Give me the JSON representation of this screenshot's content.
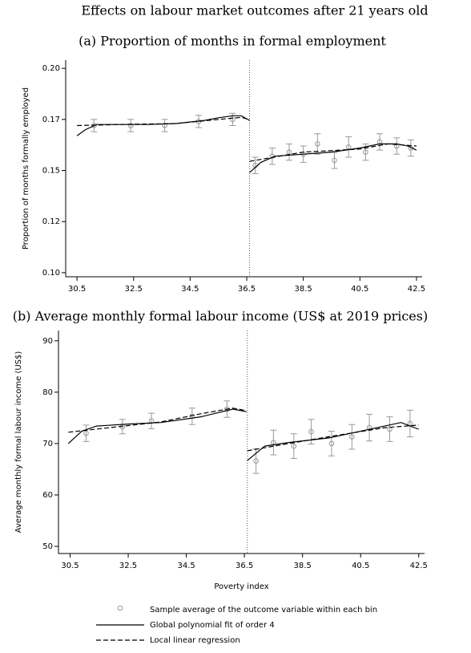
{
  "title": "Effects on labour market outcomes after 21 years old",
  "legend": [
    {
      "label": "Sample average of the outcome variable within each bin",
      "style": "points"
    },
    {
      "label": "Global polynomial fit of order 4",
      "style": "solid"
    },
    {
      "label": "Local linear regression",
      "style": "dashed"
    }
  ],
  "chart_data": [
    {
      "type": "rd",
      "title": "(a) Proportion of months in formal employment",
      "ylabel": "Proportion of months formally employed",
      "xlim": [
        30.1,
        42.7
      ],
      "ylim": [
        0.098,
        0.204
      ],
      "xticks": [
        30.5,
        32.5,
        34.5,
        36.5,
        38.5,
        40.5,
        42.5
      ],
      "yticks": [
        {
          "value": 0.1,
          "label": "0.10"
        },
        {
          "value": 0.125,
          "label": "0.12"
        },
        {
          "value": 0.15,
          "label": "0.15"
        },
        {
          "value": 0.175,
          "label": "0.17"
        },
        {
          "value": 0.2,
          "label": "0.20"
        }
      ],
      "cutoff": 36.6,
      "series": [
        {
          "style": "points",
          "color": "#999999",
          "x": [
            31.1,
            32.4,
            33.6,
            34.8,
            36.0,
            36.8,
            37.4,
            38.0,
            38.5,
            39.0,
            39.6,
            40.1,
            40.7,
            41.2,
            41.8,
            42.3
          ],
          "values": [
            0.172,
            0.172,
            0.172,
            0.174,
            0.175,
            0.1525,
            0.157,
            0.159,
            0.158,
            0.163,
            0.155,
            0.1615,
            0.159,
            0.164,
            0.162,
            0.161
          ],
          "errors": [
            0.003,
            0.003,
            0.003,
            0.003,
            0.003,
            0.004,
            0.004,
            0.004,
            0.004,
            0.005,
            0.004,
            0.005,
            0.004,
            0.004,
            0.004,
            0.004
          ]
        },
        {
          "style": "solid",
          "color": "#000000",
          "x": [
            30.5,
            30.8,
            31.2,
            32,
            33,
            34,
            35,
            35.5,
            36,
            36.3,
            36.6,
            null,
            36.6,
            37,
            37.5,
            38.5,
            39.5,
            40.5,
            41.2,
            41.8,
            42.2,
            42.5
          ],
          "values": [
            0.167,
            0.17,
            0.1725,
            0.1725,
            0.1725,
            0.173,
            0.1745,
            0.1758,
            0.1768,
            0.1768,
            0.1745,
            null,
            0.149,
            0.154,
            0.157,
            0.158,
            0.159,
            0.161,
            0.163,
            0.163,
            0.162,
            0.16
          ]
        },
        {
          "style": "dashed",
          "color": "#000000",
          "x": [
            30.5,
            32,
            34,
            35.5,
            36.3,
            36.6,
            null,
            36.6,
            38.5,
            40.5,
            41.5,
            42.5
          ],
          "values": [
            0.172,
            0.1725,
            0.173,
            0.175,
            0.176,
            0.175,
            null,
            0.1545,
            0.159,
            0.1605,
            0.163,
            0.162
          ]
        }
      ]
    },
    {
      "type": "rd",
      "title": "(b) Average monthly formal labour income (US$ at 2019 prices)",
      "ylabel": "Average monthly formal labour income (US$)",
      "xlabel": "Poverty index",
      "xlim": [
        30.1,
        42.7
      ],
      "ylim": [
        48.6,
        92
      ],
      "xticks": [
        30.5,
        32.5,
        34.5,
        36.5,
        38.5,
        40.5,
        42.5
      ],
      "yticks": [
        50,
        60,
        70,
        80,
        90
      ],
      "cutoff": 36.6,
      "series": [
        {
          "style": "points",
          "color": "#999999",
          "x": [
            31.05,
            32.3,
            33.3,
            34.7,
            35.9,
            36.9,
            37.5,
            38.2,
            38.8,
            39.5,
            40.2,
            40.8,
            41.5,
            42.2
          ],
          "values": [
            72.0,
            73.3,
            74.4,
            75.3,
            76.7,
            66.6,
            70.2,
            69.5,
            72.3,
            70.0,
            71.3,
            73.1,
            72.8,
            73.9
          ],
          "errors": [
            1.6,
            1.4,
            1.5,
            1.6,
            1.6,
            2.4,
            2.4,
            2.4,
            2.4,
            2.4,
            2.4,
            2.6,
            2.4,
            2.6
          ]
        },
        {
          "style": "solid",
          "color": "#000000",
          "x": [
            30.44,
            30.9,
            31.41,
            32.5,
            33.62,
            35.0,
            36.1,
            36.57,
            null,
            36.6,
            37.2,
            38.03,
            39.41,
            41.07,
            41.89,
            42.5
          ],
          "values": [
            70.0,
            72.4,
            73.4,
            73.8,
            74.1,
            75.2,
            76.7,
            76.2,
            null,
            66.7,
            69.5,
            70.2,
            71.1,
            73.1,
            74.1,
            72.8
          ]
        },
        {
          "style": "dashed",
          "color": "#000000",
          "x": [
            30.44,
            33.62,
            35.0,
            36.1,
            36.57,
            null,
            36.6,
            38.03,
            39.69,
            41.34,
            42.5
          ],
          "values": [
            72.2,
            74.2,
            75.8,
            76.9,
            76.4,
            null,
            68.6,
            70.0,
            71.6,
            73.1,
            73.6
          ]
        }
      ]
    }
  ]
}
